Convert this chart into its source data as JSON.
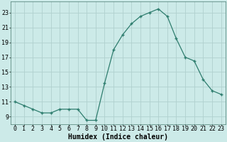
{
  "x": [
    0,
    1,
    2,
    3,
    4,
    5,
    6,
    7,
    8,
    9,
    10,
    11,
    12,
    13,
    14,
    15,
    16,
    17,
    18,
    19,
    20,
    21,
    22,
    23
  ],
  "y": [
    11,
    10.5,
    10,
    9.5,
    9.5,
    10,
    10,
    10,
    8.5,
    8.5,
    13.5,
    18,
    20,
    21.5,
    22.5,
    23,
    23.5,
    22.5,
    19.5,
    17,
    16.5,
    14,
    12.5,
    12
  ],
  "line_color": "#2e7d6e",
  "marker_color": "#2e7d6e",
  "bg_color": "#cceae8",
  "grid_color": "#b0d0ce",
  "xlabel": "Humidex (Indice chaleur)",
  "xlabel_fontsize": 7,
  "ylabel_ticks": [
    9,
    11,
    13,
    15,
    17,
    19,
    21,
    23
  ],
  "xlim": [
    -0.5,
    23.5
  ],
  "ylim": [
    8.0,
    24.5
  ],
  "xtick_labels": [
    "0",
    "1",
    "2",
    "3",
    "4",
    "5",
    "6",
    "7",
    "8",
    "9",
    "10",
    "11",
    "12",
    "13",
    "14",
    "15",
    "16",
    "17",
    "18",
    "19",
    "20",
    "21",
    "22",
    "23"
  ],
  "tick_fontsize": 6.0
}
